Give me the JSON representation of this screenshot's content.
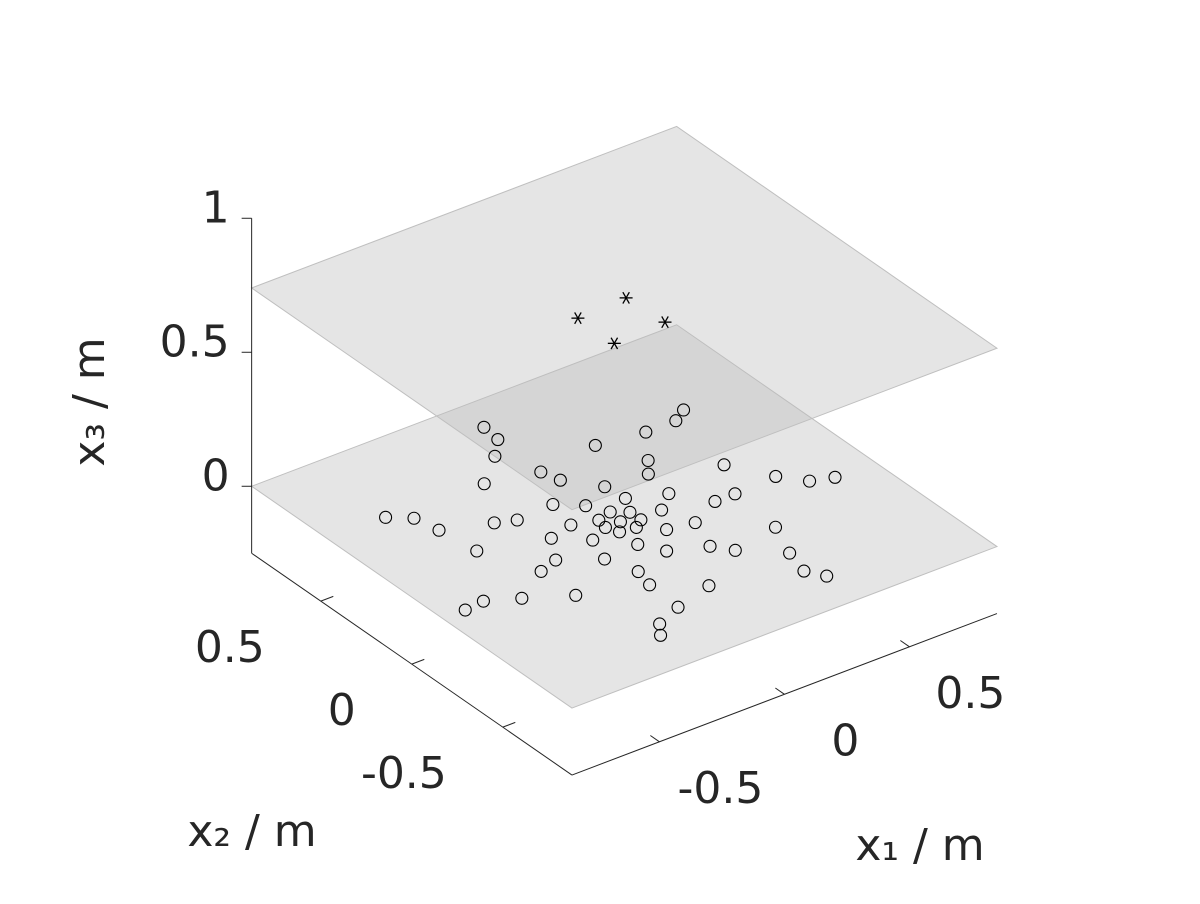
{
  "chart_data": {
    "type": "scatter3d",
    "xlabel": "x₁ / m",
    "ylabel": "x₂ / m",
    "zlabel": "x₃ / m",
    "xlim": [
      -0.85,
      0.85
    ],
    "ylim": [
      -0.88,
      0.88
    ],
    "zlim": [
      -0.25,
      1
    ],
    "xticks": [
      -0.5,
      0,
      0.5
    ],
    "yticks": [
      -0.5,
      0,
      0.5
    ],
    "zticks": [
      0,
      0.5,
      1
    ],
    "plane_levels": [
      0,
      0.74
    ],
    "plane_color": "#bfbfbf",
    "series": [
      {
        "marker": "o",
        "color": "#000000",
        "x": [
          -0.62,
          -0.55,
          -0.53,
          -0.03,
          -0.04,
          -0.11,
          -0.24,
          -0.36,
          -0.29,
          -0.51,
          -0.76,
          -0.68,
          -0.57,
          -0.42,
          -0.34,
          -0.27,
          -0.14,
          -0.05,
          -0.03,
          -0.17,
          -0.42,
          -0.06,
          -0.17,
          -0.21,
          0.19,
          0.06,
          -0.08,
          -0.02,
          -0.09,
          -0.03,
          0.07,
          0.03,
          -0.07,
          -0.07,
          -0.01,
          0.03,
          0.12,
          0.2,
          0.27,
          0.37,
          0.22,
          0.49,
          0.55,
          0.06,
          -0.02,
          -0.17,
          -0.19,
          -0.2,
          -0.31,
          -0.35,
          0.16,
          0.29,
          0.45,
          0.37,
          0.11,
          0.16,
          -0.04,
          0.54,
          0.35,
          0.61,
          0.69,
          0.29,
          0.26,
          0.3
        ],
        "y": [
          0.46,
          0.4,
          0.29,
          0.73,
          0.64,
          0.56,
          0.44,
          0.22,
          0.19,
          0.11,
          -0.17,
          -0.16,
          -0.22,
          -0.12,
          -0.09,
          0.03,
          0.2,
          0.39,
          0.31,
          0.06,
          -0.31,
          0.13,
          -0.06,
          -0.18,
          0.42,
          0.19,
          0.03,
          0.05,
          -0.02,
          -0.02,
          0.09,
          0.01,
          -0.07,
          -0.17,
          -0.08,
          -0.05,
          -0.04,
          0.03,
          0.24,
          0.39,
          0.17,
          0.39,
          0.43,
          -0.15,
          -0.26,
          -0.31,
          -0.4,
          -0.57,
          -0.62,
          -0.68,
          -0.17,
          -0.1,
          0.07,
          -0.1,
          -0.32,
          -0.39,
          -0.52,
          -0.09,
          -0.35,
          -0.18,
          -0.21,
          -0.51,
          -0.63,
          -0.7
        ],
        "z": [
          0,
          0,
          0,
          0,
          0,
          0,
          0,
          0,
          0,
          0,
          0,
          0,
          0,
          0,
          0,
          0,
          0,
          0,
          0,
          0,
          0,
          0,
          0,
          0,
          0,
          0,
          0,
          0,
          0,
          0,
          0,
          0,
          0,
          0,
          0,
          0,
          0,
          0,
          0,
          0,
          0,
          0,
          0,
          0,
          0,
          0,
          0,
          0,
          0,
          0,
          0,
          0,
          0,
          0,
          0,
          0,
          0,
          0,
          0,
          0,
          0,
          0,
          0,
          0
        ]
      },
      {
        "marker": "*",
        "color": "#000000",
        "x": [
          -0.12,
          0.08,
          0.09,
          -0.12
        ],
        "y": [
          0.09,
          0.1,
          -0.1,
          -0.11
        ],
        "z": [
          0.74,
          0.74,
          0.74,
          0.74
        ]
      }
    ]
  }
}
